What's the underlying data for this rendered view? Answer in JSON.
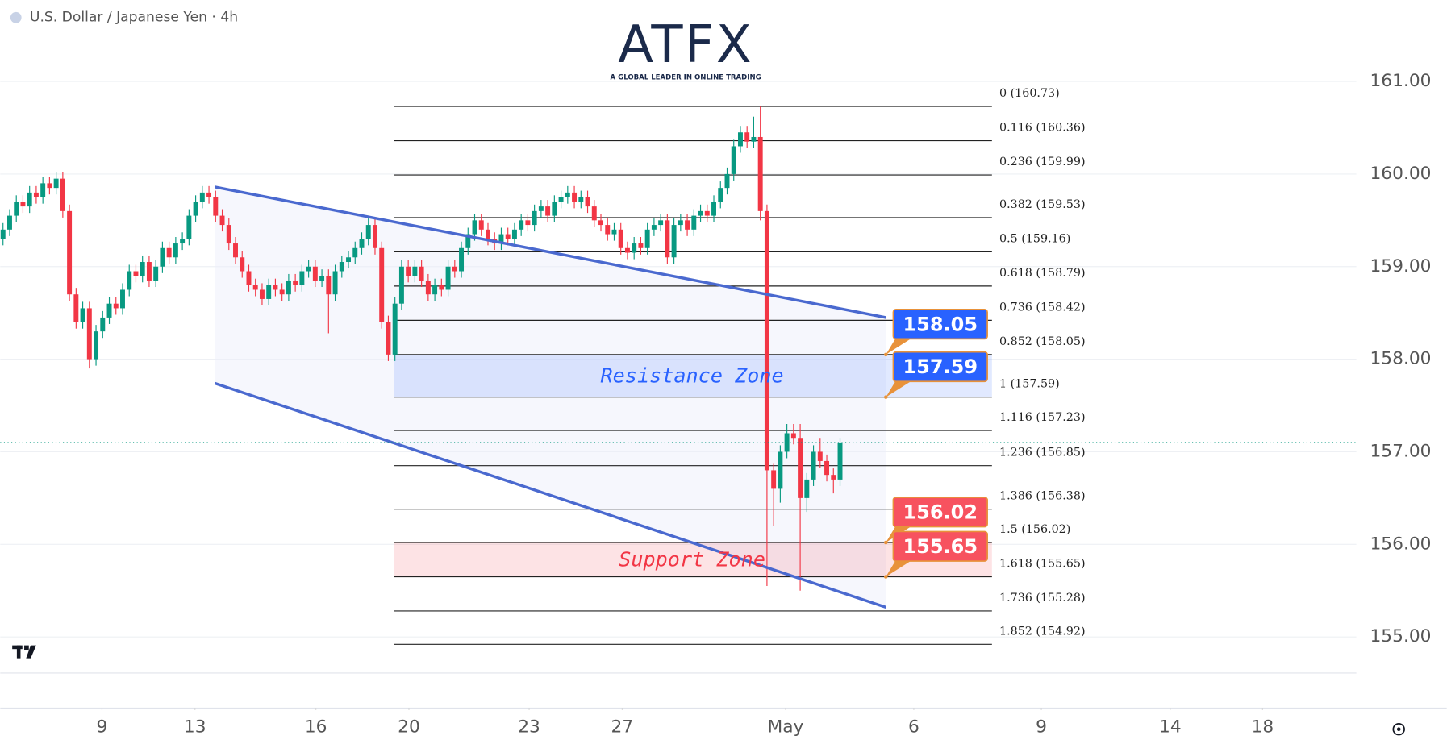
{
  "chart_data": {
    "type": "candlestick",
    "title": "U.S. Dollar / Japanese Yen · 4h",
    "watermark": {
      "text": "ATFX",
      "tagline": "A GLOBAL LEADER IN ONLINE TRADING"
    },
    "up_color": "#089981",
    "down_color": "#f23645",
    "open": [
      159.3,
      159.4,
      159.55,
      159.7,
      159.65,
      159.8,
      159.75,
      159.9,
      159.85,
      159.95,
      159.6,
      158.7,
      158.4,
      158.55,
      158.0,
      158.3,
      158.45,
      158.6,
      158.55,
      158.75,
      158.95,
      158.9,
      159.05,
      158.85,
      159.0,
      159.2,
      159.1,
      159.25,
      159.3,
      159.55,
      159.7,
      159.8,
      159.75,
      159.55,
      159.45,
      159.25,
      159.1,
      158.95,
      158.8,
      158.75,
      158.65,
      158.8,
      158.75,
      158.7,
      158.85,
      158.8,
      158.95,
      159.0,
      158.85,
      158.9,
      158.7,
      158.95,
      159.05,
      159.1,
      159.2,
      159.3,
      159.45,
      159.2,
      158.4,
      158.05,
      158.6,
      159.0,
      158.9,
      159.0,
      158.85,
      158.7,
      158.8,
      158.75,
      159.0,
      158.95,
      159.2,
      159.35,
      159.5,
      159.4,
      159.3,
      159.25,
      159.35,
      159.3,
      159.4,
      159.5,
      159.45,
      159.6,
      159.65,
      159.55,
      159.7,
      159.75,
      159.8,
      159.7,
      159.75,
      159.65,
      159.5,
      159.45,
      159.35,
      159.4,
      159.2,
      159.15,
      159.25,
      159.2,
      159.4,
      159.45,
      159.5,
      159.1,
      159.45,
      159.5,
      159.4,
      159.55,
      159.6,
      159.55,
      159.7,
      159.85,
      160.0,
      160.3,
      160.45,
      160.35,
      160.4,
      159.6,
      156.8,
      156.6,
      157.0,
      157.2,
      157.15,
      156.5,
      156.7,
      157.0,
      156.9,
      156.75,
      156.7
    ],
    "high": [
      159.47,
      159.62,
      159.77,
      159.77,
      159.87,
      159.87,
      159.97,
      159.97,
      160.02,
      160.02,
      159.67,
      158.77,
      158.62,
      158.62,
      158.37,
      158.52,
      158.67,
      158.67,
      158.82,
      159.02,
      159.02,
      159.12,
      159.12,
      159.07,
      159.27,
      159.27,
      159.32,
      159.37,
      159.62,
      159.77,
      159.87,
      159.87,
      159.82,
      159.62,
      159.52,
      159.32,
      159.17,
      159.02,
      158.87,
      158.82,
      158.87,
      158.87,
      158.82,
      158.92,
      158.92,
      159.02,
      159.07,
      159.07,
      158.97,
      158.97,
      159.02,
      159.12,
      159.17,
      159.27,
      159.37,
      159.52,
      159.52,
      159.27,
      158.47,
      158.67,
      159.07,
      159.07,
      159.07,
      159.07,
      158.92,
      158.87,
      158.87,
      159.07,
      159.07,
      159.27,
      159.42,
      159.57,
      159.57,
      159.47,
      159.37,
      159.42,
      159.42,
      159.47,
      159.57,
      159.57,
      159.67,
      159.72,
      159.72,
      159.77,
      159.82,
      159.87,
      159.87,
      159.82,
      159.82,
      159.72,
      159.57,
      159.52,
      159.47,
      159.47,
      159.27,
      159.32,
      159.32,
      159.47,
      159.52,
      159.57,
      159.57,
      159.52,
      159.57,
      159.57,
      159.62,
      159.67,
      159.67,
      159.77,
      159.92,
      160.07,
      160.37,
      160.52,
      160.52,
      160.62,
      160.73,
      159.67,
      156.87,
      157.07,
      157.3,
      157.3,
      157.3,
      156.77,
      157.07,
      157.15,
      156.97,
      156.82,
      157.15
    ],
    "low": [
      159.23,
      159.33,
      159.48,
      159.58,
      159.58,
      159.68,
      159.68,
      159.78,
      159.78,
      159.53,
      158.63,
      158.33,
      158.33,
      157.9,
      157.93,
      158.23,
      158.38,
      158.48,
      158.48,
      158.68,
      158.83,
      158.83,
      158.78,
      158.78,
      158.93,
      159.03,
      159.03,
      159.18,
      159.23,
      159.48,
      159.63,
      159.68,
      159.48,
      159.38,
      159.18,
      159.03,
      158.88,
      158.73,
      158.68,
      158.58,
      158.58,
      158.68,
      158.63,
      158.63,
      158.73,
      158.73,
      158.88,
      158.78,
      158.78,
      158.28,
      158.63,
      158.88,
      158.98,
      159.03,
      159.13,
      159.23,
      159.13,
      158.33,
      157.98,
      157.98,
      158.53,
      158.83,
      158.83,
      158.78,
      158.63,
      158.63,
      158.68,
      158.68,
      158.88,
      158.88,
      159.13,
      159.28,
      159.33,
      159.23,
      159.18,
      159.18,
      159.23,
      159.23,
      159.33,
      159.38,
      159.38,
      159.53,
      159.48,
      159.48,
      159.63,
      159.68,
      159.63,
      159.63,
      159.58,
      159.43,
      159.38,
      159.28,
      159.28,
      159.13,
      159.08,
      159.08,
      159.13,
      159.13,
      159.33,
      159.38,
      159.03,
      159.03,
      159.38,
      159.33,
      159.33,
      159.48,
      159.48,
      159.48,
      159.63,
      159.78,
      159.93,
      160.23,
      160.28,
      160.28,
      159.5,
      155.55,
      156.2,
      156.45,
      156.93,
      157.08,
      155.5,
      156.35,
      156.63,
      156.83,
      156.68,
      156.55,
      156.63
    ],
    "close": [
      159.4,
      159.55,
      159.7,
      159.65,
      159.8,
      159.75,
      159.9,
      159.85,
      159.95,
      159.6,
      158.7,
      158.4,
      158.55,
      158.0,
      158.3,
      158.45,
      158.6,
      158.55,
      158.75,
      158.95,
      158.9,
      159.05,
      158.85,
      159.0,
      159.2,
      159.1,
      159.25,
      159.3,
      159.55,
      159.7,
      159.8,
      159.75,
      159.55,
      159.45,
      159.25,
      159.1,
      158.95,
      158.8,
      158.75,
      158.65,
      158.8,
      158.75,
      158.7,
      158.85,
      158.8,
      158.95,
      159.0,
      158.85,
      158.9,
      158.7,
      158.95,
      159.05,
      159.1,
      159.2,
      159.3,
      159.45,
      159.2,
      158.4,
      158.05,
      158.6,
      159.0,
      158.9,
      159.0,
      158.85,
      158.7,
      158.8,
      158.75,
      159.0,
      158.95,
      159.2,
      159.35,
      159.5,
      159.4,
      159.3,
      159.25,
      159.35,
      159.3,
      159.4,
      159.5,
      159.45,
      159.6,
      159.65,
      159.55,
      159.7,
      159.75,
      159.8,
      159.7,
      159.75,
      159.65,
      159.5,
      159.45,
      159.35,
      159.4,
      159.2,
      159.15,
      159.25,
      159.2,
      159.4,
      159.45,
      159.5,
      159.1,
      159.45,
      159.5,
      159.4,
      159.55,
      159.6,
      159.55,
      159.7,
      159.85,
      160.0,
      160.3,
      160.45,
      160.35,
      160.4,
      159.6,
      156.8,
      156.6,
      157.0,
      157.2,
      157.15,
      156.5,
      156.7,
      157.0,
      156.9,
      156.75,
      156.7,
      157.1
    ],
    "xlim": [
      0,
      203.3
    ],
    "xticks": [
      {
        "value": 14.9,
        "label": "9"
      },
      {
        "value": 28.9,
        "label": "13"
      },
      {
        "value": 47.1,
        "label": "16"
      },
      {
        "value": 61.1,
        "label": "20"
      },
      {
        "value": 79.2,
        "label": "23"
      },
      {
        "value": 93.2,
        "label": "27"
      },
      {
        "value": 117.8,
        "label": "May"
      },
      {
        "value": 137.1,
        "label": "6"
      },
      {
        "value": 156.3,
        "label": "9"
      },
      {
        "value": 175.7,
        "label": "14"
      },
      {
        "value": 189.6,
        "label": "18"
      }
    ],
    "ylim": [
      154.61,
      161.88
    ],
    "yticks": [
      {
        "value": 161,
        "label": "161.00"
      },
      {
        "value": 160,
        "label": "160.00"
      },
      {
        "value": 159,
        "label": "159.00"
      },
      {
        "value": 158,
        "label": "158.00"
      },
      {
        "value": 157,
        "label": "157.00"
      },
      {
        "value": 156,
        "label": "156.00"
      },
      {
        "value": 155,
        "label": "155.00"
      }
    ],
    "grid": true,
    "fib_levels": [
      {
        "value": 160.73,
        "label": "0 (160.73)"
      },
      {
        "value": 160.36,
        "label": "0.116 (160.36)"
      },
      {
        "value": 159.99,
        "label": "0.236 (159.99)"
      },
      {
        "value": 159.53,
        "label": "0.382 (159.53)"
      },
      {
        "value": 159.16,
        "label": "0.5 (159.16)"
      },
      {
        "value": 158.79,
        "label": "0.618 (158.79)"
      },
      {
        "value": 158.42,
        "label": "0.736 (158.42)"
      },
      {
        "value": 158.05,
        "label": "0.852 (158.05)"
      },
      {
        "value": 157.59,
        "label": "1 (157.59)"
      },
      {
        "value": 157.23,
        "label": "1.116 (157.23)"
      },
      {
        "value": 156.85,
        "label": "1.236 (156.85)"
      },
      {
        "value": 156.38,
        "label": "1.386 (156.38)"
      },
      {
        "value": 156.02,
        "label": "1.5 (156.02)"
      },
      {
        "value": 155.65,
        "label": "1.618 (155.65)"
      },
      {
        "value": 155.28,
        "label": "1.736 (155.28)"
      },
      {
        "value": 154.92,
        "label": "1.852 (154.92)"
      }
    ],
    "zones": [
      {
        "name": "Resistance Zone",
        "range": [
          157.59,
          158.05
        ],
        "color": "#2962ff"
      },
      {
        "name": "Support Zone",
        "range": [
          155.65,
          156.02
        ],
        "color": "#f23645"
      }
    ],
    "price_labels": [
      {
        "value": 158.05,
        "color": "#2962ff"
      },
      {
        "value": 157.59,
        "color": "#2962ff"
      },
      {
        "value": 156.02,
        "color": "#f7525f"
      },
      {
        "value": 155.65,
        "color": "#f7525f"
      }
    ],
    "trendlines": [
      {
        "x": [
          31.9,
          132.9
        ],
        "y": [
          159.86,
          158.45
        ]
      },
      {
        "x": [
          31.9,
          132.9
        ],
        "y": [
          157.74,
          155.32
        ]
      }
    ],
    "trendline_color": "#4a69cf"
  }
}
